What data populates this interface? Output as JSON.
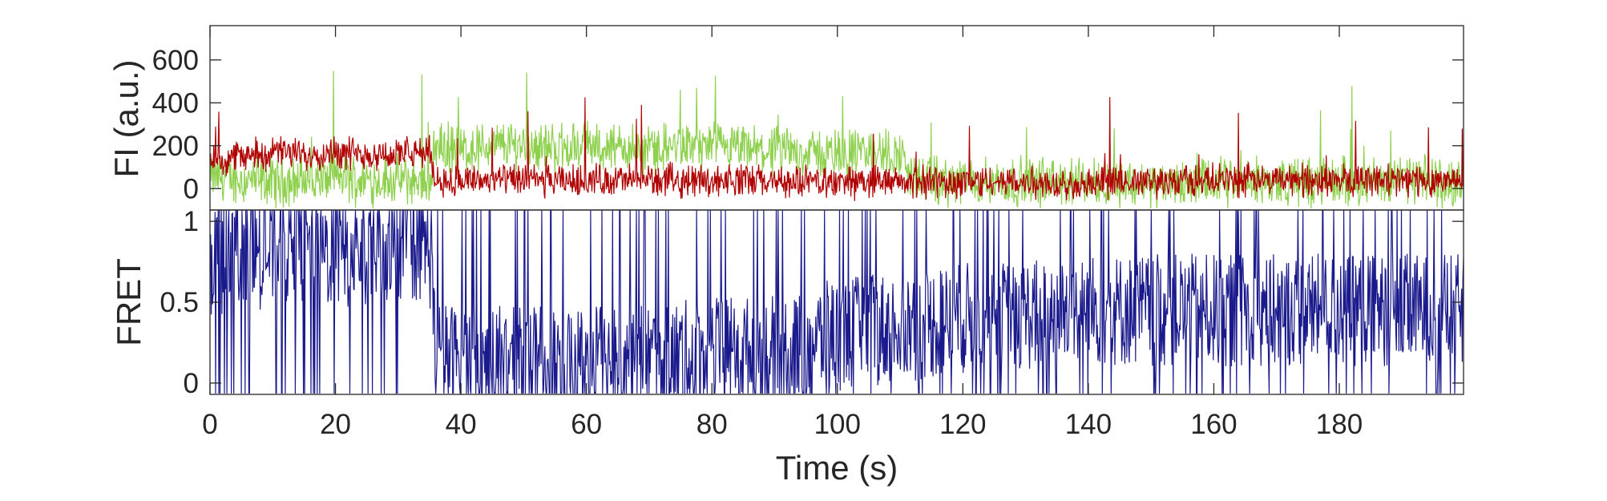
{
  "chart_data": [
    {
      "type": "line",
      "panel": "fluorescence",
      "ylabel": "FI (a.u.)",
      "ylim": [
        -100,
        760
      ],
      "yticks": [
        0,
        200,
        400,
        600
      ],
      "ytick_labels": [
        "0",
        "200",
        "400",
        "600"
      ],
      "xlim": [
        0,
        199.8
      ],
      "grid": false,
      "colors": {
        "donor": "#8fd14f",
        "acceptor": "#b00000"
      },
      "x": [
        0,
        5,
        10,
        15,
        20,
        25,
        30,
        35,
        36,
        40,
        45,
        50,
        55,
        60,
        65,
        70,
        75,
        80,
        85,
        90,
        95,
        100,
        105,
        110,
        112,
        115,
        120,
        130,
        140,
        150,
        160,
        170,
        180,
        190,
        199
      ],
      "series": [
        {
          "values": [
            60,
            40,
            30,
            40,
            50,
            40,
            40,
            30,
            200,
            180,
            200,
            210,
            190,
            200,
            190,
            180,
            200,
            190,
            180,
            170,
            170,
            160,
            170,
            160,
            50,
            30,
            30,
            30,
            30,
            20,
            30,
            30,
            30,
            40,
            30
          ],
          "noise": 90,
          "spike_max": 570
        },
        {
          "values": [
            130,
            150,
            170,
            160,
            170,
            160,
            160,
            170,
            40,
            40,
            40,
            40,
            30,
            40,
            40,
            40,
            40,
            40,
            40,
            30,
            30,
            30,
            30,
            30,
            30,
            30,
            30,
            30,
            20,
            30,
            40,
            40,
            40,
            40,
            40
          ],
          "noise": 60,
          "spike_max": 430
        }
      ]
    },
    {
      "type": "line",
      "panel": "fret",
      "ylabel": "FRET",
      "xlabel": "Time (s)",
      "ylim": [
        -0.07,
        1.07
      ],
      "yticks": [
        0,
        0.5,
        1
      ],
      "ytick_labels": [
        "0",
        "0.5",
        "1"
      ],
      "xlim": [
        0,
        199.8
      ],
      "xticks": [
        0,
        20,
        40,
        60,
        80,
        100,
        120,
        140,
        160,
        180
      ],
      "xtick_labels": [
        "0",
        "20",
        "40",
        "60",
        "80",
        "100",
        "120",
        "140",
        "160",
        "180"
      ],
      "grid": false,
      "colors": {
        "fret": "#1a1a8c"
      },
      "x": [
        0,
        5,
        10,
        15,
        20,
        25,
        30,
        35,
        36,
        40,
        50,
        60,
        70,
        80,
        90,
        100,
        110,
        120,
        140,
        160,
        180,
        199
      ],
      "series": [
        {
          "values": [
            0.75,
            0.8,
            0.8,
            0.85,
            0.8,
            0.8,
            0.85,
            0.85,
            0.15,
            0.15,
            0.12,
            0.15,
            0.15,
            0.18,
            0.2,
            0.3,
            0.35,
            0.4,
            0.45,
            0.45,
            0.45,
            0.45
          ],
          "noise": 0.35,
          "range": [
            -0.07,
            1.07
          ]
        }
      ]
    }
  ]
}
